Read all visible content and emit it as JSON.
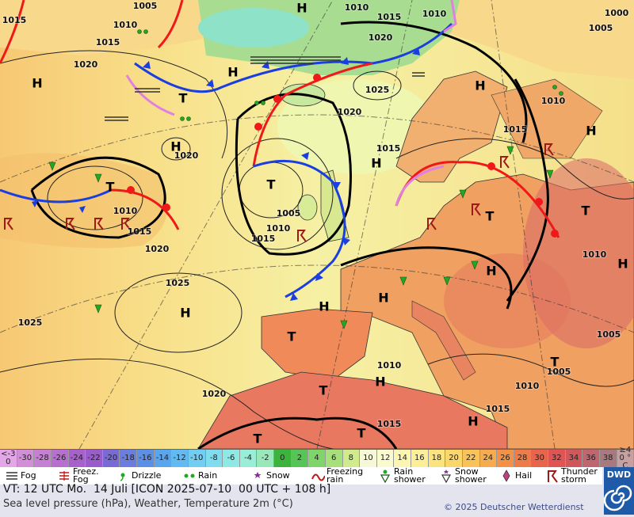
{
  "map": {
    "pressure_labels": [
      "1005",
      "1010",
      "1015",
      "1010",
      "1000",
      "1005",
      "1015",
      "1010",
      "1015",
      "1020",
      "1020",
      "1025",
      "1010",
      "1020",
      "1015",
      "1015",
      "1020",
      "1010",
      "1005",
      "1015",
      "1010",
      "1015",
      "1020",
      "1010",
      "1025",
      "1025",
      "1005",
      "1010",
      "1005",
      "1010",
      "1020",
      "1015",
      "1015"
    ],
    "pressure_centers": [
      "H",
      "H",
      "H",
      "H",
      "T",
      "H",
      "H",
      "H",
      "T",
      "T",
      "T",
      "T",
      "H",
      "H",
      "H",
      "H",
      "H",
      "T",
      "T",
      "H",
      "T",
      "H",
      "T",
      "T"
    ]
  },
  "scale": {
    "cells": [
      {
        "label": "<-30",
        "color": "#e3a6e6"
      },
      {
        "label": "-30",
        "color": "#d38ed8"
      },
      {
        "label": "-28",
        "color": "#c77fd3"
      },
      {
        "label": "-26",
        "color": "#b96fd0"
      },
      {
        "label": "-24",
        "color": "#a860cc"
      },
      {
        "label": "-22",
        "color": "#9a5ccc"
      },
      {
        "label": "-20",
        "color": "#7a6ad8"
      },
      {
        "label": "-18",
        "color": "#6a7ee0"
      },
      {
        "label": "-16",
        "color": "#5c90e8"
      },
      {
        "label": "-14",
        "color": "#5aa6ee"
      },
      {
        "label": "-12",
        "color": "#62baf2"
      },
      {
        "label": "-10",
        "color": "#72cdf2"
      },
      {
        "label": "-8",
        "color": "#80dcef"
      },
      {
        "label": "-6",
        "color": "#8ee8e4"
      },
      {
        "label": "-4",
        "color": "#98eed6"
      },
      {
        "label": "-2",
        "color": "#98e8b8"
      },
      {
        "label": "0",
        "color": "#3cb43c"
      },
      {
        "label": "2",
        "color": "#56c456"
      },
      {
        "label": "4",
        "color": "#7fd46a"
      },
      {
        "label": "6",
        "color": "#a6e07a"
      },
      {
        "label": "8",
        "color": "#cfeb8c"
      },
      {
        "label": "10",
        "color": "#f7f8d8"
      },
      {
        "label": "12",
        "color": "#fbfbd0"
      },
      {
        "label": "14",
        "color": "#fdf6b0"
      },
      {
        "label": "16",
        "color": "#fcef98"
      },
      {
        "label": "18",
        "color": "#fbe47e"
      },
      {
        "label": "20",
        "color": "#fbd66a"
      },
      {
        "label": "22",
        "color": "#f9c35a"
      },
      {
        "label": "24",
        "color": "#f6ab4e"
      },
      {
        "label": "26",
        "color": "#f29248"
      },
      {
        "label": "28",
        "color": "#ee7b4a"
      },
      {
        "label": "30",
        "color": "#e8644c"
      },
      {
        "label": "32",
        "color": "#e05454"
      },
      {
        "label": "34",
        "color": "#d0585c"
      },
      {
        "label": "36",
        "color": "#bf6670"
      },
      {
        "label": "38",
        "color": "#a87a80"
      },
      {
        "label": "≥40 °C",
        "color": "#c9a0a0"
      }
    ]
  },
  "legend": [
    "Fog",
    "Freez. Fog",
    "Drizzle",
    "Rain",
    "Snow",
    "Freezing rain",
    "Rain shower",
    "Snow shower",
    "Hail",
    "Thunder storm"
  ],
  "footer": {
    "valid_time": "VT: 12 UTC Mo.  14 Juli [ICON 2025-07-10  00 UTC + 108 h]",
    "subtitle": "Sea level pressure (hPa), Weather, Temperature 2m (°C)",
    "copyright": "© 2025 Deutscher Wetterdienst",
    "logo": "DWD"
  }
}
